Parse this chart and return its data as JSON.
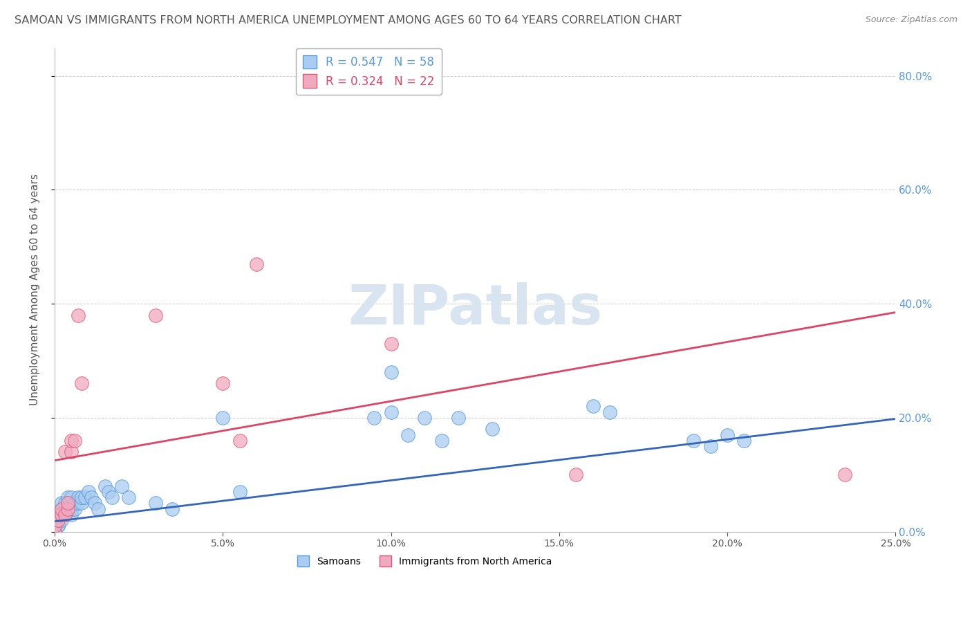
{
  "title": "SAMOAN VS IMMIGRANTS FROM NORTH AMERICA UNEMPLOYMENT AMONG AGES 60 TO 64 YEARS CORRELATION CHART",
  "source": "Source: ZipAtlas.com",
  "ylabel": "Unemployment Among Ages 60 to 64 years",
  "xlim": [
    0.0,
    0.25
  ],
  "ylim": [
    0.0,
    0.85
  ],
  "xticks": [
    0.0,
    0.05,
    0.1,
    0.15,
    0.2,
    0.25
  ],
  "yticks_right": [
    0.0,
    0.2,
    0.4,
    0.6,
    0.8
  ],
  "samoans_x": [
    0.0,
    0.0,
    0.0,
    0.0,
    0.0,
    0.0,
    0.001,
    0.001,
    0.001,
    0.001,
    0.001,
    0.002,
    0.002,
    0.002,
    0.002,
    0.003,
    0.003,
    0.003,
    0.004,
    0.004,
    0.004,
    0.005,
    0.005,
    0.005,
    0.006,
    0.006,
    0.007,
    0.007,
    0.008,
    0.008,
    0.009,
    0.01,
    0.011,
    0.012,
    0.013,
    0.015,
    0.016,
    0.017,
    0.02,
    0.022,
    0.03,
    0.035,
    0.05,
    0.055,
    0.095,
    0.1,
    0.105,
    0.115,
    0.16,
    0.165,
    0.19,
    0.195,
    0.2,
    0.205,
    0.1,
    0.11,
    0.12,
    0.13
  ],
  "samoans_y": [
    0.0,
    0.0,
    0.0,
    0.0,
    0.0,
    0.01,
    0.01,
    0.01,
    0.02,
    0.02,
    0.03,
    0.02,
    0.03,
    0.04,
    0.05,
    0.03,
    0.04,
    0.05,
    0.04,
    0.05,
    0.06,
    0.03,
    0.04,
    0.06,
    0.04,
    0.05,
    0.05,
    0.06,
    0.05,
    0.06,
    0.06,
    0.07,
    0.06,
    0.05,
    0.04,
    0.08,
    0.07,
    0.06,
    0.08,
    0.06,
    0.05,
    0.04,
    0.2,
    0.07,
    0.2,
    0.21,
    0.17,
    0.16,
    0.22,
    0.21,
    0.16,
    0.15,
    0.17,
    0.16,
    0.28,
    0.2,
    0.2,
    0.18
  ],
  "immigrants_x": [
    0.0,
    0.0,
    0.001,
    0.001,
    0.002,
    0.002,
    0.003,
    0.003,
    0.004,
    0.004,
    0.005,
    0.005,
    0.006,
    0.007,
    0.008,
    0.03,
    0.05,
    0.055,
    0.06,
    0.1,
    0.155,
    0.235
  ],
  "immigrants_y": [
    0.0,
    0.01,
    0.02,
    0.03,
    0.03,
    0.04,
    0.03,
    0.14,
    0.04,
    0.05,
    0.14,
    0.16,
    0.16,
    0.38,
    0.26,
    0.38,
    0.26,
    0.16,
    0.47,
    0.33,
    0.1,
    0.1
  ],
  "samoans_color": "#aaccf0",
  "immigrants_color": "#f0aabf",
  "samoans_edge_color": "#5599dd",
  "immigrants_edge_color": "#dd5577",
  "samoans_line_color": "#3366bb",
  "immigrants_line_color": "#dd4466",
  "samoans_R": 0.547,
  "samoans_N": 58,
  "immigrants_R": 0.324,
  "immigrants_N": 22,
  "background_color": "#ffffff",
  "grid_color": "#cccccc",
  "title_color": "#555555",
  "source_color": "#888888",
  "right_tick_color": "#5599dd",
  "watermark_text": "ZIPatlas",
  "watermark_color": "#d8e4f0",
  "legend_text_color_1": "#5599dd",
  "legend_text_color_2": "#dd4466"
}
